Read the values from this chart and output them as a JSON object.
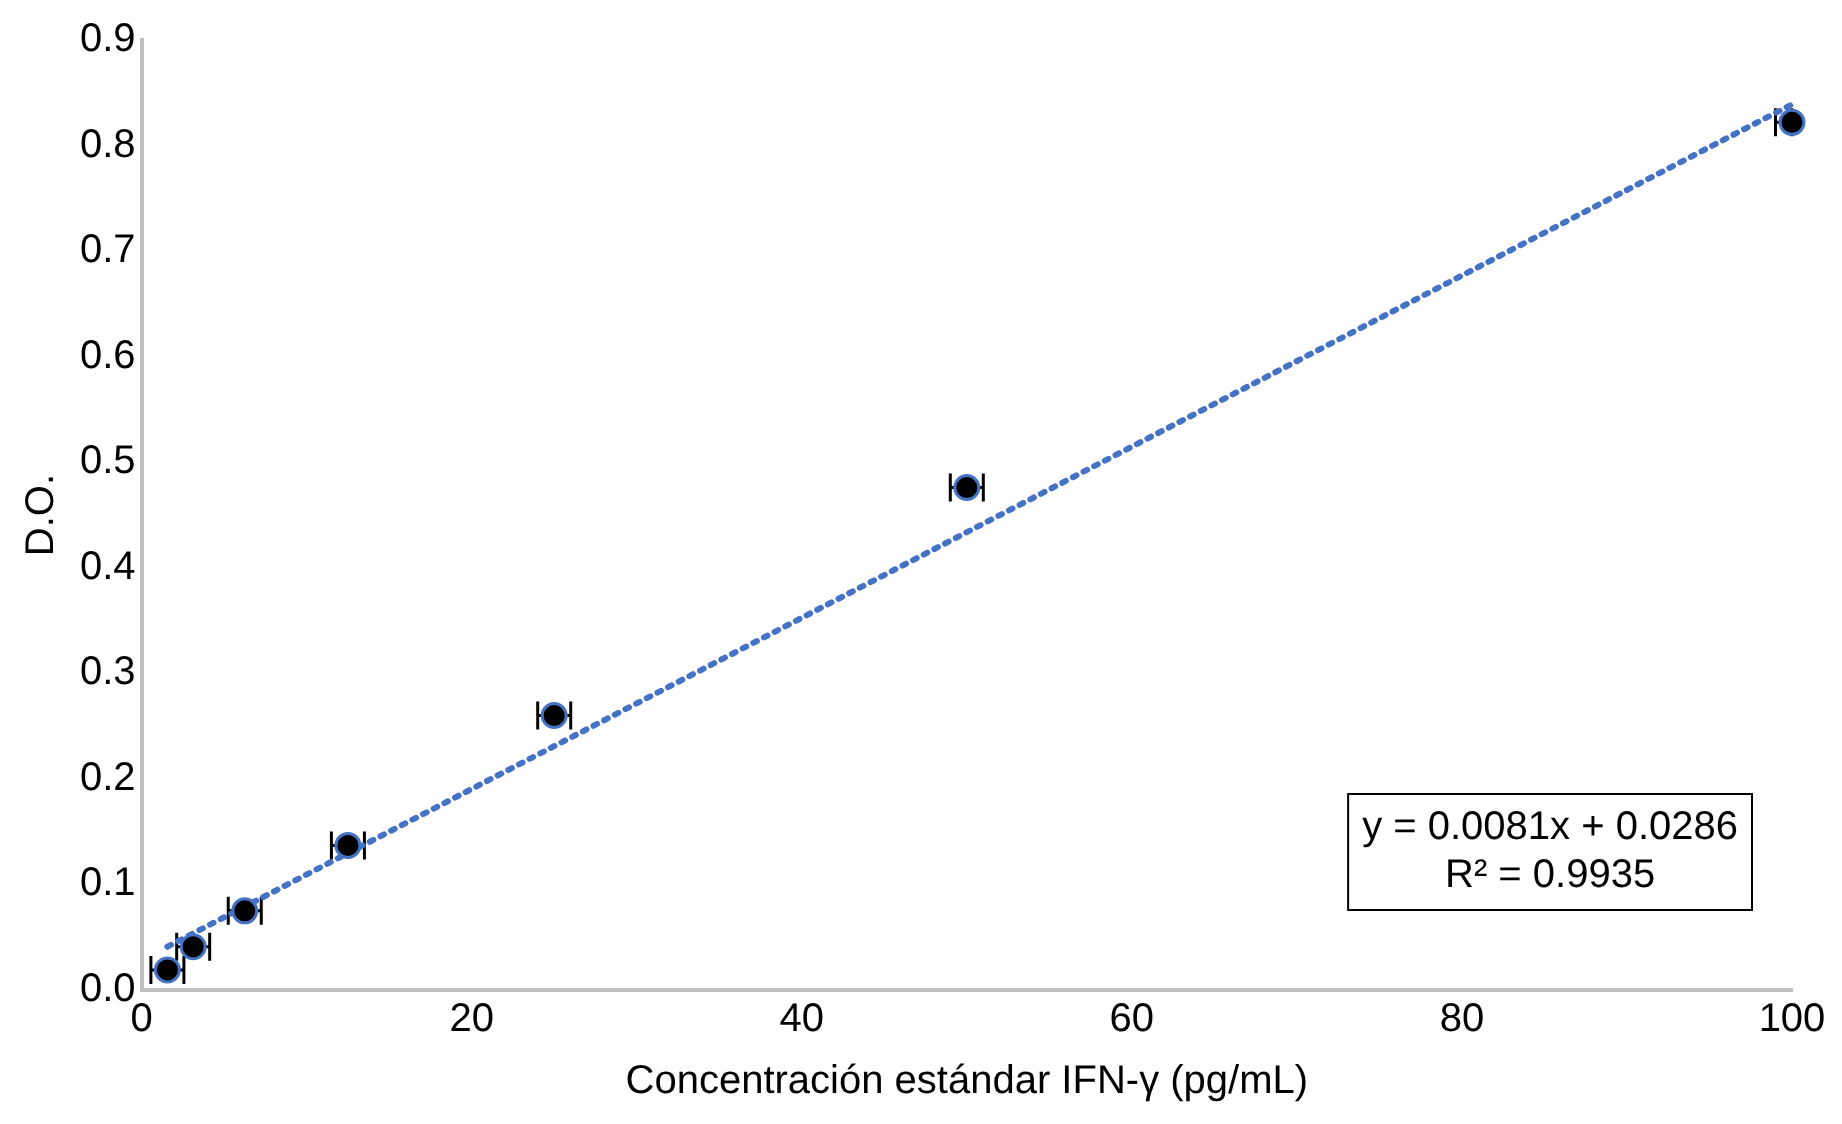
{
  "chart_data": {
    "type": "scatter",
    "xlabel": "Concentración estándar IFN-γ (pg/mL)",
    "ylabel": "D.O.",
    "xlim": [
      0,
      100
    ],
    "xticks": [
      0,
      20,
      40,
      60,
      80,
      100
    ],
    "ylim": [
      0,
      0.9
    ],
    "yticks": [
      {
        "value": 0,
        "label": "0.0"
      },
      {
        "value": 0.1,
        "label": "0.1"
      },
      {
        "value": 0.2,
        "label": "0.2"
      },
      {
        "value": 0.3,
        "label": "0.3"
      },
      {
        "value": 0.4,
        "label": "0.4"
      },
      {
        "value": 0.5,
        "label": "0.5"
      },
      {
        "value": 0.6,
        "label": "0.6"
      },
      {
        "value": 0.7,
        "label": "0.7"
      },
      {
        "value": 0.8,
        "label": "0.8"
      },
      {
        "value": 0.9,
        "label": "0.9"
      }
    ],
    "grid": false,
    "legend": false,
    "marker": "circle",
    "series": [
      {
        "type": "scatter",
        "color": "#000000",
        "x": [
          1.5625,
          3.125,
          6.25,
          12.5,
          25,
          50,
          100
        ],
        "values": [
          0.019,
          0.041,
          0.075,
          0.137,
          0.26,
          0.476,
          0.822
        ],
        "xerrors": [
          1,
          1,
          1,
          1,
          1,
          1,
          [
            99,
            100
          ]
        ]
      },
      {
        "type": "line",
        "color": "#4472c4",
        "line_style": "dotted",
        "marker": "none",
        "x": [
          1.5625,
          100
        ],
        "values": [
          0.041,
          0.839
        ]
      }
    ],
    "annotations": [
      "y = 0.0081x + 0.0286",
      "R² = 0.9935"
    ]
  }
}
